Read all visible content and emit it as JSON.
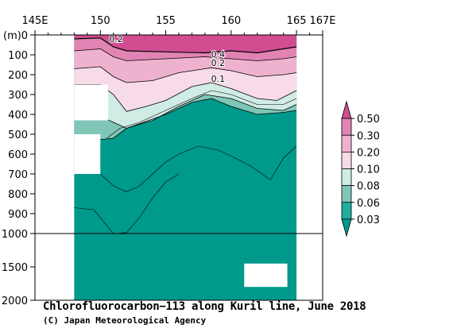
{
  "chart_data": {
    "type": "heatmap",
    "title": "Chlorofluorocarbon−113 along Kuril line, June 2018",
    "credit": "(C) Japan Meteorological Agency",
    "x_tick_labels": [
      "145E",
      "150",
      "155",
      "160",
      "165",
      "167E"
    ],
    "x_ticks": [
      145,
      150,
      155,
      160,
      165,
      167
    ],
    "y_unit_label": "(m)",
    "y_tick_labels": [
      "0",
      "100",
      "200",
      "300",
      "400",
      "500",
      "600",
      "700",
      "800",
      "900",
      "1000",
      "1500",
      "2000"
    ],
    "y_ticks": [
      0,
      100,
      200,
      300,
      400,
      500,
      600,
      700,
      800,
      900,
      1000,
      1500,
      2000
    ],
    "y_break_depth": 1000,
    "colorbar": {
      "labels": [
        "0.50",
        "0.30",
        "0.20",
        "0.10",
        "0.08",
        "0.06",
        "0.03"
      ],
      "levels": [
        0.03,
        0.06,
        0.08,
        0.1,
        0.2,
        0.3,
        0.5
      ],
      "colors": [
        "#009a8c",
        "#20ad9c",
        "#7fc6b6",
        "#cfece5",
        "#f7dbe8",
        "#eeb2cf",
        "#e184b4",
        "#d04d91"
      ]
    },
    "contour_labels": [
      "0.2",
      "0.4",
      "0.2",
      "0.1"
    ],
    "contour_label_positions": [
      {
        "lon": 151.2,
        "depth": 20
      },
      {
        "lon": 159.0,
        "depth": 95
      },
      {
        "lon": 159.0,
        "depth": 140
      },
      {
        "lon": 159.0,
        "depth": 220
      }
    ],
    "section": {
      "lon_range": [
        148.0,
        165.0
      ],
      "no_data_boxes": [
        {
          "lon": [
            148.0,
            150.6
          ],
          "depth": [
            250,
            430
          ]
        },
        {
          "lon": [
            148.0,
            150.0
          ],
          "depth": [
            500,
            700
          ]
        },
        {
          "lon": [
            161.0,
            164.3
          ],
          "depth": [
            1450,
            1800
          ]
        }
      ],
      "layers": [
        {
          "level": 0.1,
          "boundary": [
            [
              148,
              250
            ],
            [
              150,
              250
            ],
            [
              151,
              300
            ],
            [
              152,
              385
            ],
            [
              153.5,
              360
            ],
            [
              155,
              330
            ],
            [
              157,
              260
            ],
            [
              158.5,
              240
            ],
            [
              160,
              270
            ],
            [
              162,
              320
            ],
            [
              163.5,
              330
            ],
            [
              165,
              280
            ]
          ]
        },
        {
          "level": 0.2,
          "boundary": [
            [
              148,
              170
            ],
            [
              150,
              160
            ],
            [
              151,
              210
            ],
            [
              152,
              240
            ],
            [
              154,
              230
            ],
            [
              156,
              190
            ],
            [
              158.5,
              165
            ],
            [
              160,
              180
            ],
            [
              162,
              210
            ],
            [
              164,
              200
            ],
            [
              165,
              190
            ]
          ]
        },
        {
          "level": 0.3,
          "boundary": [
            [
              148,
              80
            ],
            [
              150,
              70
            ],
            [
              151,
              110
            ],
            [
              152,
              130
            ],
            [
              155,
              120
            ],
            [
              158,
              110
            ],
            [
              160,
              120
            ],
            [
              162,
              130
            ],
            [
              164,
              120
            ],
            [
              165,
              110
            ]
          ]
        },
        {
          "level": 0.5,
          "boundary": [
            [
              148,
              20
            ],
            [
              150,
              15
            ],
            [
              151,
              60
            ],
            [
              152,
              80
            ],
            [
              155,
              85
            ],
            [
              158,
              90
            ],
            [
              160,
              80
            ],
            [
              162,
              90
            ],
            [
              164,
              70
            ],
            [
              165,
              60
            ]
          ]
        }
      ],
      "deep_layers": [
        {
          "level": 0.06,
          "boundary": [
            [
              148,
              540
            ],
            [
              151,
              520
            ],
            [
              152,
              470
            ],
            [
              155,
              400
            ],
            [
              157,
              340
            ],
            [
              158.5,
              320
            ],
            [
              160,
              360
            ],
            [
              162,
              400
            ],
            [
              164,
              390
            ],
            [
              165,
              380
            ]
          ]
        },
        {
          "level": 0.08,
          "boundary": [
            [
              148,
              420
            ],
            [
              150,
              410
            ],
            [
              151,
              440
            ],
            [
              152,
              470
            ],
            [
              154,
              430
            ],
            [
              156,
              360
            ],
            [
              158,
              300
            ],
            [
              160,
              320
            ],
            [
              162,
              370
            ],
            [
              164,
              380
            ],
            [
              165,
              350
            ]
          ]
        }
      ],
      "contours": [
        [
          [
            148,
            600
          ],
          [
            149,
            640
          ],
          [
            150,
            700
          ],
          [
            151,
            760
          ],
          [
            152,
            790
          ],
          [
            153,
            760
          ],
          [
            154,
            700
          ],
          [
            155,
            640
          ],
          [
            156,
            600
          ],
          [
            157.5,
            560
          ],
          [
            159,
            580
          ],
          [
            160,
            610
          ],
          [
            161.5,
            660
          ],
          [
            163,
            730
          ],
          [
            164,
            620
          ],
          [
            165,
            560
          ]
        ],
        [
          [
            148,
            870
          ],
          [
            149.5,
            880
          ],
          [
            150.5,
            960
          ],
          [
            151,
            1005
          ],
          [
            152,
            995
          ],
          [
            153,
            920
          ],
          [
            154,
            820
          ],
          [
            155,
            740
          ],
          [
            156,
            700
          ]
        ],
        [
          [
            150.5,
            520
          ],
          [
            151.5,
            470
          ],
          [
            153,
            440
          ],
          [
            155,
            380
          ],
          [
            157,
            320
          ],
          [
            158.5,
            280
          ],
          [
            160,
            300
          ],
          [
            162,
            350
          ],
          [
            164,
            350
          ],
          [
            165,
            320
          ]
        ]
      ]
    }
  }
}
